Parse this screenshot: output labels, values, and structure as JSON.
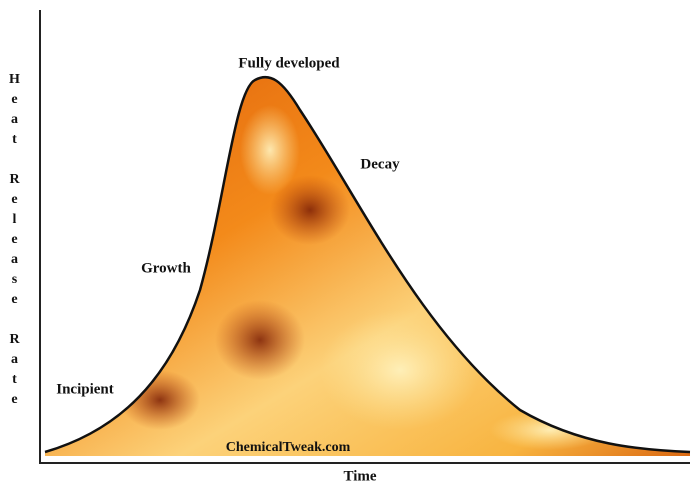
{
  "stages": [
    {
      "label": "Incipient"
    },
    {
      "label": "Growth"
    },
    {
      "label": "Fully developed"
    },
    {
      "label": "Decay"
    }
  ],
  "axes": {
    "x": "Time",
    "y": "Heat Release Rate"
  },
  "watermark": "ChemicalTweak.com"
}
